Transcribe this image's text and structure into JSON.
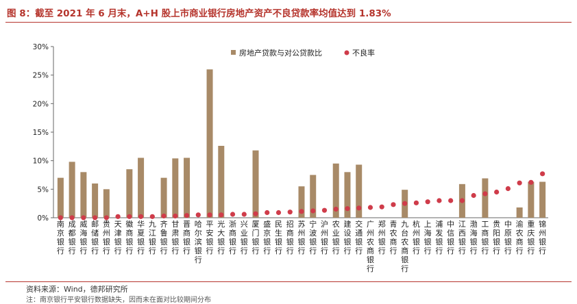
{
  "header": {
    "title": "图 8：截至 2021 年 6 月末，A+H 股上市商业银行房地产资产不良贷款率均值达到 1.83%"
  },
  "footer": {
    "source": "资料来源：Wind，德邦研究所",
    "note": "注：南京银行平安银行数据缺失，因而未在面对比较期间分布"
  },
  "chart_data": {
    "type": "bar",
    "title": "",
    "xlabel": "",
    "ylabel": "",
    "ylim": [
      0,
      30
    ],
    "yticks": [
      "0%",
      "5%",
      "10%",
      "15%",
      "20%",
      "25%",
      "30%"
    ],
    "grid": false,
    "legend_position": "top-right",
    "categories": [
      "南京银行",
      "成都银行",
      "威海银行",
      "邮储银行",
      "贵州银行",
      "天津银行",
      "徽商银行",
      "华夏银行",
      "九江银行",
      "齐鲁银行",
      "甘肃银行",
      "晋商银行",
      "哈尔滨银行",
      "平安银行",
      "光大银行",
      "浙商银行",
      "兴业银行",
      "厦门银行",
      "盛京银行",
      "民生银行",
      "招商银行",
      "苏州银行",
      "宁波银行",
      "沪州银行",
      "农业银行",
      "建设银行",
      "交通银行",
      "广州农商银行",
      "郑州银行",
      "青农商行",
      "九台农商银行",
      "杭州银行",
      "上海银行",
      "浦发银行",
      "中信银行",
      "江西银行",
      "渤海银行",
      "工商银行",
      "贵阳银行",
      "中原银行",
      "渝农商行",
      "重庆银行",
      "锦州银行"
    ],
    "series": [
      {
        "name": "房地产贷款与对公贷款比",
        "kind": "bar",
        "color": "#a88a67",
        "values": [
          7.0,
          9.8,
          8.0,
          6.0,
          5.0,
          null,
          8.5,
          10.5,
          null,
          7.0,
          10.4,
          10.5,
          null,
          26.0,
          12.6,
          null,
          null,
          11.8,
          null,
          null,
          null,
          5.5,
          7.5,
          null,
          9.5,
          8.0,
          9.3,
          null,
          null,
          null,
          4.9,
          null,
          null,
          null,
          null,
          5.9,
          null,
          6.9,
          null,
          null,
          1.8,
          6.3,
          6.3
        ]
      },
      {
        "name": "不良率",
        "kind": "dot",
        "color": "#cf3c4a",
        "values": [
          0.0,
          0.0,
          0.0,
          0.0,
          0.0,
          0.2,
          0.2,
          0.2,
          0.2,
          0.3,
          0.3,
          0.4,
          0.5,
          0.5,
          0.5,
          0.6,
          0.6,
          0.7,
          0.9,
          0.9,
          1.0,
          1.1,
          1.2,
          1.3,
          1.5,
          1.6,
          1.7,
          1.8,
          1.9,
          2.3,
          2.5,
          2.6,
          2.8,
          3.0,
          3.0,
          3.0,
          3.9,
          4.2,
          4.5,
          5.1,
          6.1,
          6.2,
          7.7
        ]
      }
    ]
  }
}
